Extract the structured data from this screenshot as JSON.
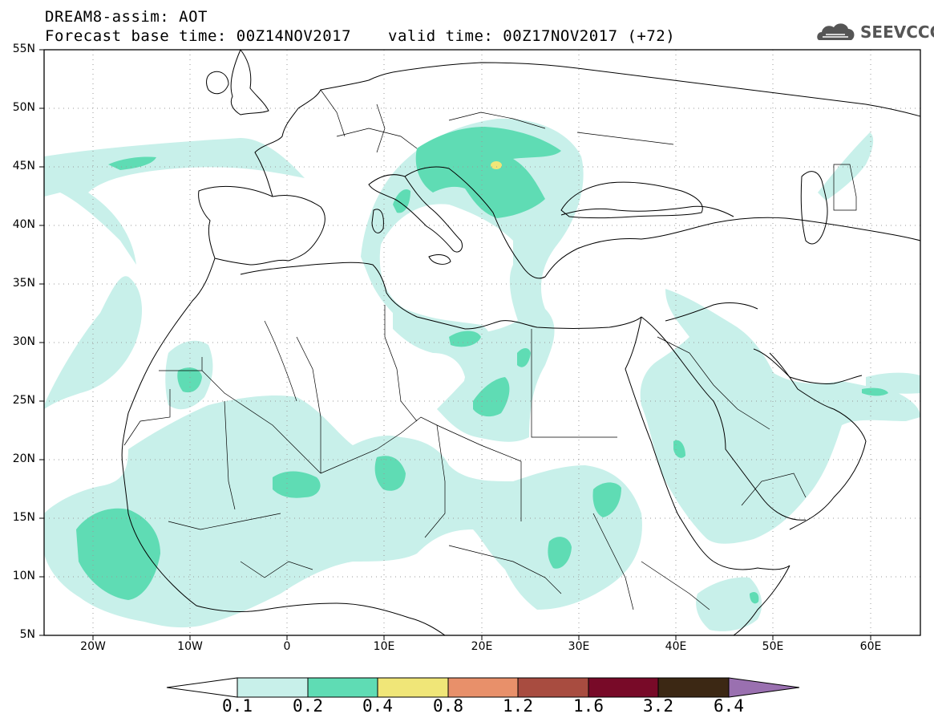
{
  "header": {
    "title": "DREAM8-assim: AOT",
    "base_time": "Forecast base time: 00Z14NOV2017",
    "valid_time": "valid time: 00Z17NOV2017 (+72)",
    "logo_text": "SEEVCCC"
  },
  "map": {
    "projection": "cylindrical",
    "lon_range": [
      -25,
      65
    ],
    "lat_range": [
      5,
      55
    ],
    "grid": "dotted",
    "lat_ticks": [
      {
        "value": 55,
        "label": "55N"
      },
      {
        "value": 50,
        "label": "50N"
      },
      {
        "value": 45,
        "label": "45N"
      },
      {
        "value": 40,
        "label": "40N"
      },
      {
        "value": 35,
        "label": "35N"
      },
      {
        "value": 30,
        "label": "30N"
      },
      {
        "value": 25,
        "label": "25N"
      },
      {
        "value": 20,
        "label": "20N"
      },
      {
        "value": 15,
        "label": "15N"
      },
      {
        "value": 10,
        "label": "10N"
      },
      {
        "value": 5,
        "label": "5N"
      }
    ],
    "lon_ticks": [
      {
        "value": -20,
        "label": "20W"
      },
      {
        "value": -10,
        "label": "10W"
      },
      {
        "value": 0,
        "label": "0"
      },
      {
        "value": 10,
        "label": "10E"
      },
      {
        "value": 20,
        "label": "20E"
      },
      {
        "value": 30,
        "label": "30E"
      },
      {
        "value": 40,
        "label": "40E"
      },
      {
        "value": 50,
        "label": "50E"
      },
      {
        "value": 60,
        "label": "60E"
      }
    ]
  },
  "colorbar": {
    "levels": [
      "0.1",
      "0.2",
      "0.4",
      "0.8",
      "1.2",
      "1.6",
      "3.2",
      "6.4"
    ],
    "colors": [
      "#c8f0ea",
      "#5fdcb4",
      "#f0e678",
      "#e8906a",
      "#a84c40",
      "#780a28",
      "#3c2814",
      "#9a70b0"
    ]
  },
  "colors": {
    "aot_low": "#c8f0ea",
    "aot_mid": "#5fdcb4",
    "aot_high": "#f0e678"
  }
}
